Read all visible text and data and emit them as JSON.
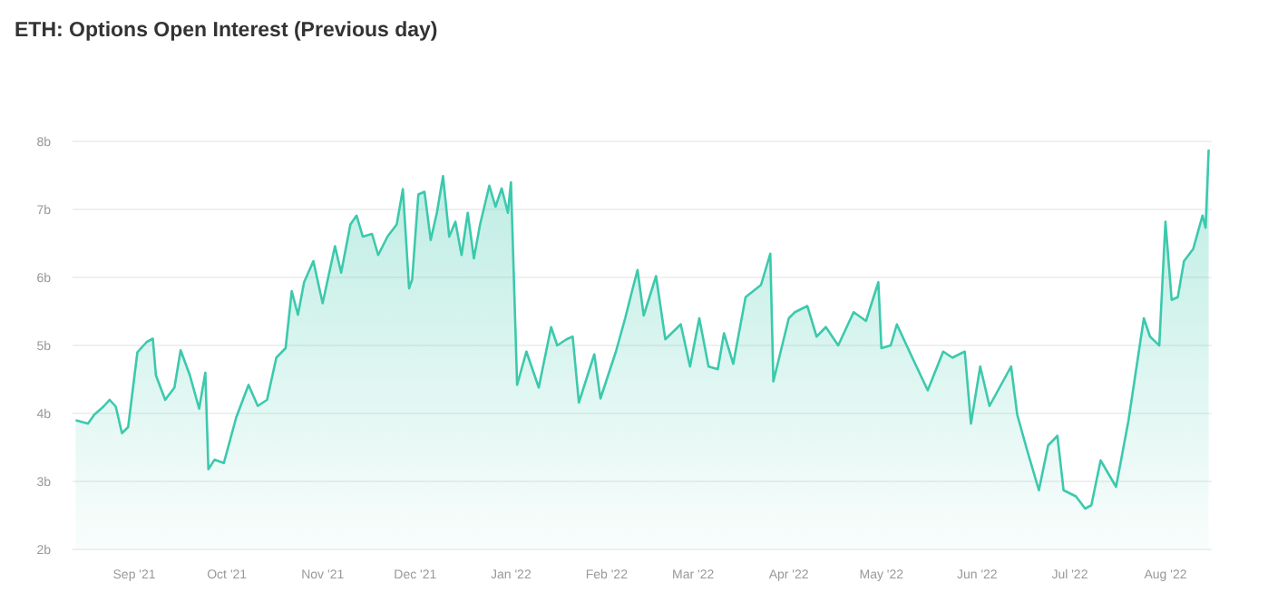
{
  "chart_data": {
    "type": "area",
    "title": "ETH: Options Open Interest (Previous day)",
    "x": [
      "2021-08-13",
      "2021-08-17",
      "2021-08-19",
      "2021-08-22",
      "2021-08-24",
      "2021-08-26",
      "2021-08-28",
      "2021-08-30",
      "2021-09-02",
      "2021-09-05",
      "2021-09-07",
      "2021-09-08",
      "2021-09-11",
      "2021-09-14",
      "2021-09-16",
      "2021-09-19",
      "2021-09-22",
      "2021-09-24",
      "2021-09-25",
      "2021-09-27",
      "2021-09-30",
      "2021-10-04",
      "2021-10-08",
      "2021-10-11",
      "2021-10-14",
      "2021-10-17",
      "2021-10-20",
      "2021-10-22",
      "2021-10-24",
      "2021-10-26",
      "2021-10-29",
      "2021-11-01",
      "2021-11-05",
      "2021-11-07",
      "2021-11-10",
      "2021-11-12",
      "2021-11-14",
      "2021-11-17",
      "2021-11-19",
      "2021-11-22",
      "2021-11-25",
      "2021-11-27",
      "2021-11-29",
      "2021-11-30",
      "2021-12-02",
      "2021-12-04",
      "2021-12-06",
      "2021-12-08",
      "2021-12-10",
      "2021-12-12",
      "2021-12-14",
      "2021-12-16",
      "2021-12-18",
      "2021-12-20",
      "2021-12-22",
      "2021-12-25",
      "2021-12-27",
      "2021-12-29",
      "2021-12-31",
      "2022-01-01",
      "2022-01-03",
      "2022-01-06",
      "2022-01-10",
      "2022-01-14",
      "2022-01-16",
      "2022-01-19",
      "2022-01-21",
      "2022-01-23",
      "2022-01-28",
      "2022-01-30",
      "2022-02-04",
      "2022-02-07",
      "2022-02-09",
      "2022-02-11",
      "2022-02-13",
      "2022-02-17",
      "2022-02-20",
      "2022-02-25",
      "2022-02-28",
      "2022-03-03",
      "2022-03-06",
      "2022-03-09",
      "2022-03-11",
      "2022-03-14",
      "2022-03-18",
      "2022-03-23",
      "2022-03-26",
      "2022-03-27",
      "2022-04-01",
      "2022-04-03",
      "2022-04-07",
      "2022-04-10",
      "2022-04-13",
      "2022-04-17",
      "2022-04-22",
      "2022-04-26",
      "2022-04-30",
      "2022-05-01",
      "2022-05-04",
      "2022-05-06",
      "2022-05-11",
      "2022-05-16",
      "2022-05-21",
      "2022-05-24",
      "2022-05-28",
      "2022-05-30",
      "2022-06-02",
      "2022-06-05",
      "2022-06-12",
      "2022-06-14",
      "2022-06-17",
      "2022-06-21",
      "2022-06-24",
      "2022-06-27",
      "2022-06-29",
      "2022-07-03",
      "2022-07-06",
      "2022-07-08",
      "2022-07-11",
      "2022-07-16",
      "2022-07-20",
      "2022-07-25",
      "2022-07-27",
      "2022-07-30",
      "2022-08-01",
      "2022-08-03",
      "2022-08-05",
      "2022-08-07",
      "2022-08-10",
      "2022-08-13",
      "2022-08-14",
      "2022-08-15"
    ],
    "series": [
      {
        "color": "#3cc9ad",
        "values": [
          3.9,
          3.85,
          3.98,
          4.1,
          4.2,
          4.1,
          3.71,
          3.8,
          4.9,
          5.05,
          5.1,
          4.56,
          4.2,
          4.38,
          4.93,
          4.56,
          4.07,
          4.6,
          3.18,
          3.32,
          3.27,
          3.94,
          4.42,
          4.11,
          4.2,
          4.82,
          4.96,
          5.8,
          5.45,
          5.93,
          6.24,
          5.62,
          6.46,
          6.07,
          6.78,
          6.91,
          6.6,
          6.64,
          6.33,
          6.6,
          6.78,
          7.3,
          5.84,
          5.97,
          7.22,
          7.26,
          6.55,
          6.95,
          7.49,
          6.6,
          6.82,
          6.33,
          6.95,
          6.28,
          6.78,
          7.35,
          7.04,
          7.31,
          6.95,
          7.4,
          4.42,
          4.91,
          4.38,
          5.27,
          5.0,
          5.09,
          5.13,
          4.16,
          4.87,
          4.22,
          4.91,
          5.4,
          5.76,
          6.11,
          5.44,
          6.02,
          5.09,
          5.31,
          4.69,
          5.4,
          4.69,
          4.65,
          5.18,
          4.73,
          5.71,
          5.89,
          6.35,
          4.47,
          5.4,
          5.49,
          5.58,
          5.13,
          5.27,
          5.0,
          5.49,
          5.36,
          5.93,
          4.96,
          5.0,
          5.31,
          4.82,
          4.34,
          4.91,
          4.82,
          4.91,
          3.85,
          4.69,
          4.11,
          4.69,
          3.98,
          3.49,
          2.87,
          3.53,
          3.67,
          2.87,
          2.78,
          2.6,
          2.65,
          3.31,
          2.92,
          3.89,
          5.4,
          5.13,
          5.0,
          6.82,
          5.67,
          5.71,
          6.24,
          6.42,
          6.91,
          6.73,
          7.88
        ]
      }
    ],
    "xlim": [
      "2021-08-12",
      "2022-08-16"
    ],
    "xticks": [
      {
        "value": "2021-09-01",
        "label": "Sep '21"
      },
      {
        "value": "2021-10-01",
        "label": "Oct '21"
      },
      {
        "value": "2021-11-01",
        "label": "Nov '21"
      },
      {
        "value": "2021-12-01",
        "label": "Dec '21"
      },
      {
        "value": "2022-01-01",
        "label": "Jan '22"
      },
      {
        "value": "2022-02-01",
        "label": "Feb '22"
      },
      {
        "value": "2022-03-01",
        "label": "Mar '22"
      },
      {
        "value": "2022-04-01",
        "label": "Apr '22"
      },
      {
        "value": "2022-05-01",
        "label": "May '22"
      },
      {
        "value": "2022-06-01",
        "label": "Jun '22"
      },
      {
        "value": "2022-07-01",
        "label": "Jul '22"
      },
      {
        "value": "2022-08-01",
        "label": "Aug '22"
      }
    ],
    "ylim": [
      2,
      8
    ],
    "yticks": [
      {
        "value": 2,
        "label": "2b"
      },
      {
        "value": 3,
        "label": "3b"
      },
      {
        "value": 4,
        "label": "4b"
      },
      {
        "value": 5,
        "label": "5b"
      },
      {
        "value": 6,
        "label": "6b"
      },
      {
        "value": 7,
        "label": "7b"
      },
      {
        "value": 8,
        "label": "8b"
      }
    ],
    "grid": "y"
  }
}
